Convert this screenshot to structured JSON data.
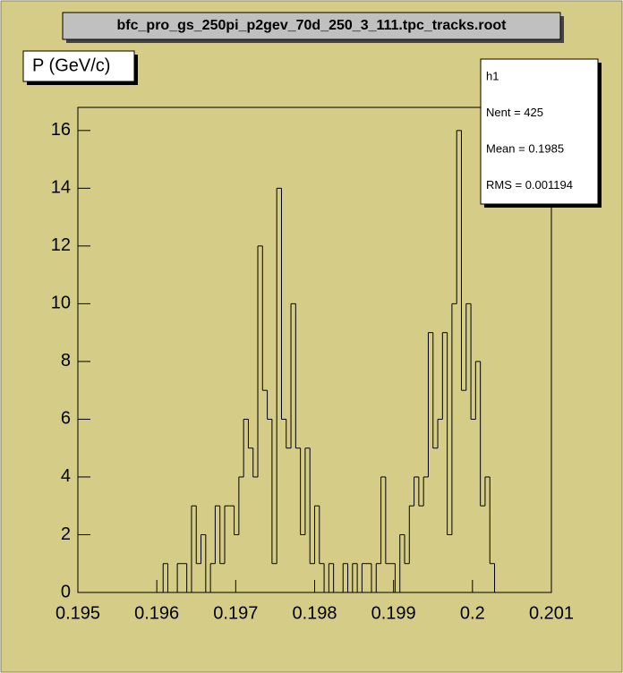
{
  "chart_data": {
    "type": "histogram",
    "title": "bfc_pro_gs_250pi_p2gev_70d_250_3_111.tpc_tracks.root",
    "subtitle": "P (GeV/c)",
    "stats": [
      "h1",
      "Nent = 425",
      "Mean  = 0.1985",
      "RMS   = 0.001194"
    ],
    "bins": [
      0.19608,
      0.19614,
      0.1962,
      0.19626,
      0.19632,
      0.19638,
      0.19644,
      0.1965,
      0.19656,
      0.19662,
      0.19668,
      0.19674,
      0.1968,
      0.19686,
      0.19692,
      0.19698,
      0.19704,
      0.1971,
      0.19716,
      0.19722,
      0.19728,
      0.19734,
      0.1974,
      0.19746,
      0.19752,
      0.19758,
      0.19764,
      0.1977,
      0.19776,
      0.19782,
      0.19788,
      0.19794,
      0.198,
      0.19806,
      0.19812,
      0.19818,
      0.19824,
      0.1983,
      0.19836,
      0.19842,
      0.19848,
      0.19854,
      0.1986,
      0.19866,
      0.19872,
      0.19878,
      0.19884,
      0.1989,
      0.19896,
      0.19902,
      0.19908,
      0.19914,
      0.1992,
      0.19926,
      0.19932,
      0.19938,
      0.19944,
      0.1995,
      0.19956,
      0.19962,
      0.19968,
      0.19974,
      0.1998,
      0.19986,
      0.19992,
      0.19998,
      0.20004,
      0.2001,
      0.20016,
      0.20022,
      0.20028
    ],
    "values": [
      1,
      0,
      0,
      1,
      1,
      0,
      3,
      1,
      2,
      0,
      1,
      3,
      1,
      3,
      3,
      2,
      4,
      6,
      5,
      4,
      12,
      7,
      6,
      1,
      14,
      6,
      5,
      10,
      5,
      2,
      5,
      1,
      3,
      1,
      0,
      1,
      0,
      0,
      1,
      0,
      1,
      0,
      1,
      1,
      0,
      1,
      4,
      1,
      1,
      0,
      2,
      1,
      3,
      4,
      3,
      4,
      9,
      5,
      6,
      9,
      2,
      10,
      16,
      7,
      10,
      6,
      8,
      3,
      4,
      1
    ],
    "color": "#000000",
    "xlim": [
      0.195,
      0.201
    ],
    "xticks": [
      0.195,
      0.196,
      0.197,
      0.198,
      0.199,
      0.2,
      0.201
    ],
    "ylim": [
      0,
      16.8
    ],
    "yticks": [
      0,
      2,
      4,
      6,
      8,
      10,
      12,
      14,
      16
    ]
  }
}
